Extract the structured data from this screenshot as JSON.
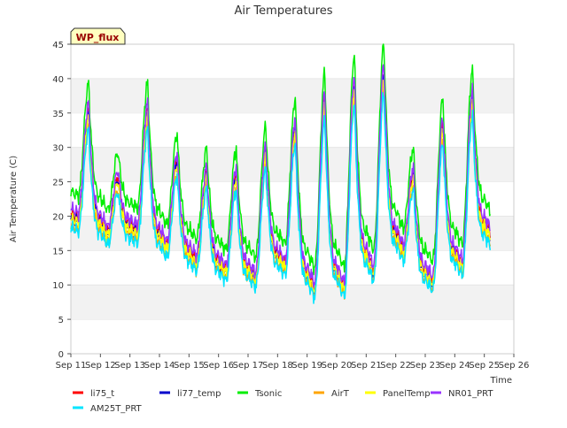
{
  "chart_data": {
    "type": "line",
    "title": "Air Temperatures",
    "xlabel": "Time",
    "ylabel": "Air Temperature (C)",
    "site_badge": "WP_flux",
    "xlim": [
      11,
      26
    ],
    "ylim": [
      0,
      45
    ],
    "yticks": [
      0,
      5,
      10,
      15,
      20,
      25,
      30,
      35,
      40,
      45
    ],
    "xtick_labels": [
      "Sep 11",
      "Sep 12",
      "Sep 13",
      "Sep 14",
      "Sep 15",
      "Sep 16",
      "Sep 17",
      "Sep 18",
      "Sep 19",
      "Sep 20",
      "Sep 21",
      "Sep 22",
      "Sep 23",
      "Sep 24",
      "Sep 25",
      "Sep 26"
    ],
    "grid": "horizontal bands",
    "legend_position": "bottom",
    "daily_minima": [
      19.5,
      17.5,
      17.8,
      15.5,
      13.5,
      12.0,
      11.0,
      12.8,
      9.5,
      9.5,
      12.0,
      15.0,
      10.5,
      12.8,
      17.0
    ],
    "daily_maxima": [
      35.0,
      25.5,
      35.0,
      28.0,
      26.0,
      26.0,
      29.0,
      33.0,
      36.5,
      39.0,
      40.5,
      26.0,
      33.0,
      37.0
    ],
    "series": [
      {
        "name": "li75_t",
        "color": "#ff0000",
        "offset": 0.3,
        "scale": 1.0
      },
      {
        "name": "li77_temp",
        "color": "#0000cc",
        "offset": -0.3,
        "scale": 1.0
      },
      {
        "name": "Tsonic",
        "color": "#00ee00",
        "offset": 2.5,
        "scale": 1.05
      },
      {
        "name": "AirT",
        "color": "#ffa500",
        "offset": -0.6,
        "scale": 0.96
      },
      {
        "name": "PanelTemp",
        "color": "#ffff00",
        "offset": 0.0,
        "scale": 0.98
      },
      {
        "name": "NR01_PRT",
        "color": "#9933ff",
        "offset": 0.6,
        "scale": 1.02
      },
      {
        "name": "AM25T_PRT",
        "color": "#00e5ff",
        "offset": -0.8,
        "scale": 0.95
      }
    ]
  }
}
